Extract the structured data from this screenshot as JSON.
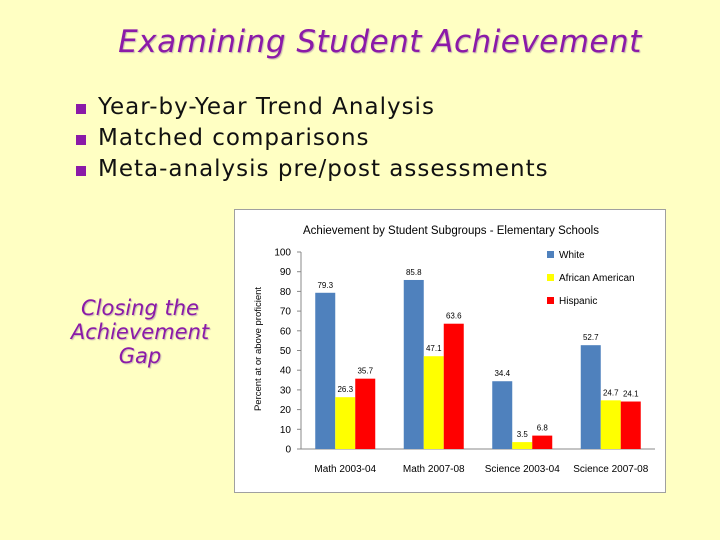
{
  "slide": {
    "title": "Examining Student Achievement",
    "bullets": [
      "Year-by-Year Trend Analysis",
      "Matched comparisons",
      "Meta-analysis pre/post assessments"
    ],
    "side_note": [
      "Closing the",
      "Achievement",
      "Gap"
    ],
    "colors": {
      "title": "#8b1aa8",
      "background": "#ffffc3",
      "bullet": "#8b1aa8"
    }
  },
  "chart_data": {
    "type": "bar",
    "title": "Achievement by Student Subgroups - Elementary Schools",
    "xlabel": "",
    "ylabel": "Percent at or above proficient",
    "categories": [
      "Math 2003-04",
      "Math 2007-08",
      "Science 2003-04",
      "Science 2007-08"
    ],
    "series": [
      {
        "name": "White",
        "color": "#4f81bd",
        "values": [
          79.3,
          85.8,
          34.4,
          52.7
        ]
      },
      {
        "name": "African American",
        "color": "#ffff00",
        "values": [
          26.3,
          47.1,
          3.5,
          24.7
        ]
      },
      {
        "name": "Hispanic",
        "color": "#ff0000",
        "values": [
          35.7,
          63.6,
          6.8,
          24.1
        ]
      }
    ],
    "ylim": [
      0,
      100
    ],
    "yticks": [
      0,
      10,
      20,
      30,
      40,
      50,
      60,
      70,
      80,
      90,
      100
    ],
    "grid": false,
    "legend": "top-right"
  }
}
